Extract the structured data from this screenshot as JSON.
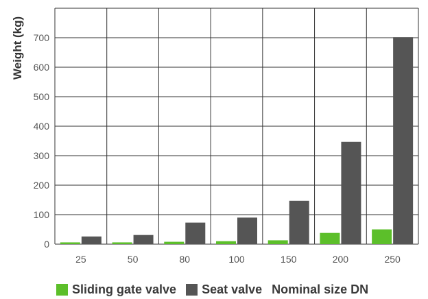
{
  "chart_data": {
    "type": "bar",
    "categories": [
      "25",
      "50",
      "80",
      "100",
      "150",
      "200",
      "250"
    ],
    "series": [
      {
        "name": "Sliding gate valve",
        "color": "#5cbf2a",
        "values": [
          6,
          6,
          8,
          10,
          13,
          38,
          50
        ]
      },
      {
        "name": "Seat valve",
        "color": "#555555",
        "values": [
          26,
          31,
          73,
          90,
          147,
          347,
          702
        ]
      }
    ],
    "title": "",
    "xlabel": "Nominal size DN",
    "ylabel": "Weight (kg)",
    "ylim": [
      0,
      800
    ],
    "yticks": [
      0,
      100,
      200,
      300,
      400,
      500,
      600,
      700
    ],
    "grid": true,
    "legend_position": "bottom"
  }
}
